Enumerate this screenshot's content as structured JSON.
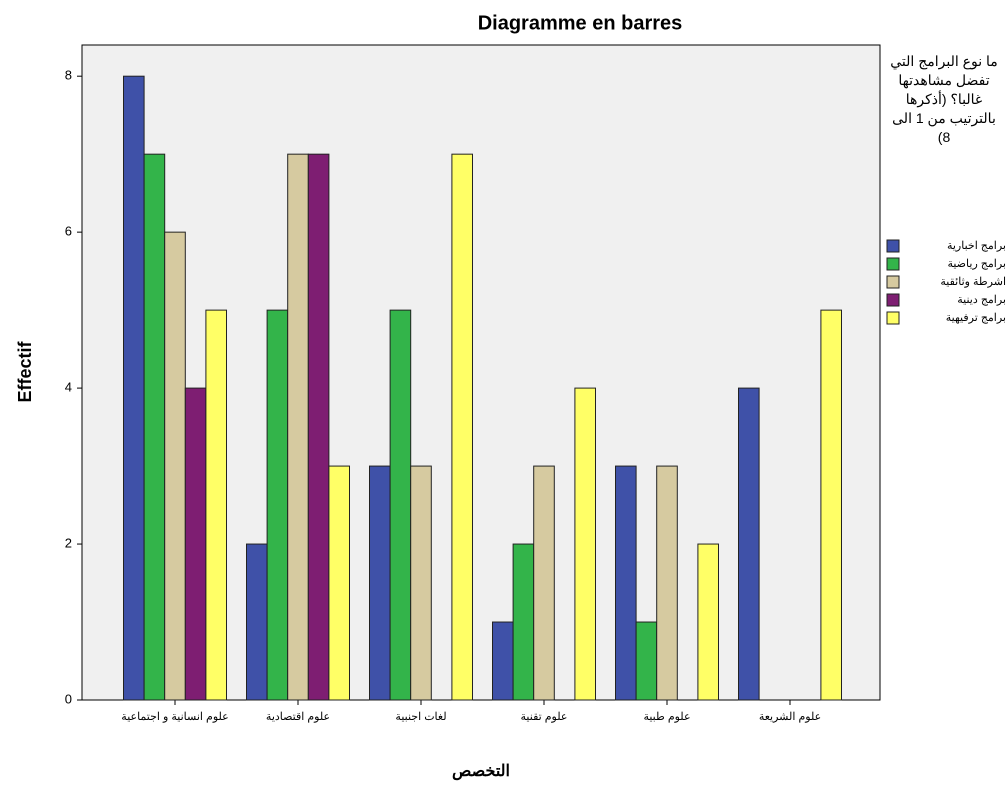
{
  "chart_data": {
    "type": "bar",
    "title": "Diagramme en barres",
    "x_label": "التخصص",
    "y_label": "Effectif",
    "legend_title": "ما نوع البرامج التي تفضل مشاهدتها غالبا؟ (أذكرها بالترتيب من 1 الى 8)",
    "legend_position": "right",
    "categories": [
      "علوم انسانية و اجتماعية",
      "علوم اقتصادية",
      "لغات اجنبية",
      "علوم تقنية",
      "علوم طبية",
      "علوم الشريعة"
    ],
    "series": [
      {
        "name": "برامج اخبارية",
        "color": "#3f51a8",
        "values": [
          8,
          2,
          3,
          1,
          3,
          4
        ]
      },
      {
        "name": "برامج رياضية",
        "color": "#33b44a",
        "values": [
          7,
          5,
          5,
          2,
          1,
          null
        ]
      },
      {
        "name": "اشرطة وثائقية",
        "color": "#d6caa0",
        "values": [
          6,
          7,
          3,
          3,
          3,
          null
        ]
      },
      {
        "name": "برامج دينية",
        "color": "#7e1e72",
        "values": [
          4,
          7,
          null,
          null,
          null,
          null
        ]
      },
      {
        "name": "برامج ترفيهية",
        "color": "#ffff66",
        "values": [
          5,
          3,
          7,
          4,
          2,
          5
        ]
      }
    ],
    "ylim": [
      0,
      8.4
    ],
    "yticks": [
      0,
      2,
      4,
      6,
      8
    ],
    "grid": false
  }
}
